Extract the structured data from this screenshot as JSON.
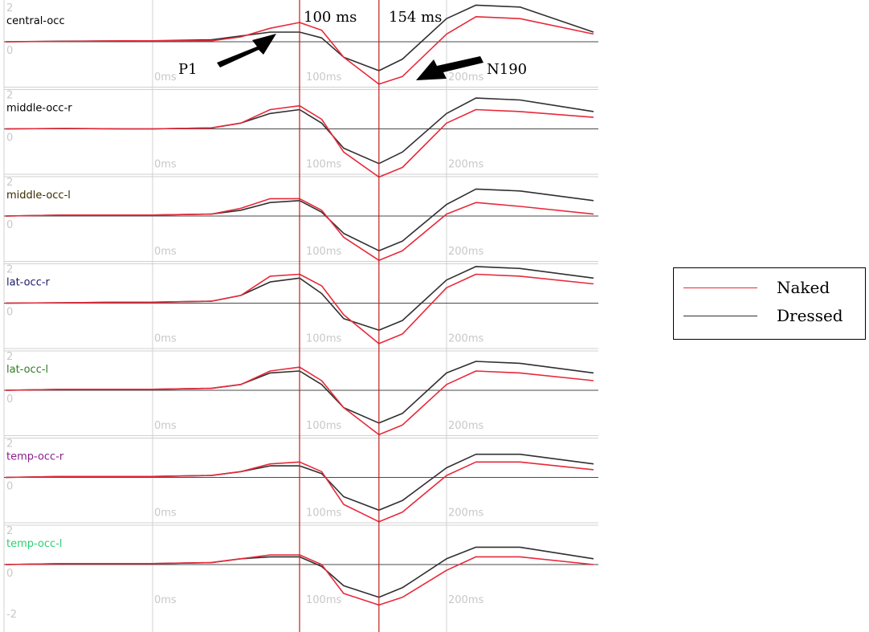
{
  "chart_data": {
    "type": "line",
    "x_unit": "ms",
    "x_ticks": [
      "0ms",
      "100ms",
      "200ms"
    ],
    "markers": [
      {
        "label": "100 ms",
        "t": 100
      },
      {
        "label": "154 ms",
        "t": 154
      }
    ],
    "annotations": [
      {
        "label": "P1",
        "t": 100
      },
      {
        "label": "N190",
        "t": 154
      }
    ],
    "y_top_label": "2",
    "y_zero_label": "0",
    "y_bottom_label": "-2",
    "legend": [
      {
        "name": "Naked",
        "color": "#e8293a"
      },
      {
        "name": "Dressed",
        "color": "#303030"
      }
    ],
    "panels": [
      {
        "label": "central-occ",
        "label_color": "#000000",
        "naked": [
          [
            -100,
            0
          ],
          [
            -60,
            0.02
          ],
          [
            -20,
            0.05
          ],
          [
            0,
            0.05
          ],
          [
            40,
            0.05
          ],
          [
            60,
            0.25
          ],
          [
            80,
            0.7
          ],
          [
            100,
            1.0
          ],
          [
            115,
            0.6
          ],
          [
            130,
            -0.8
          ],
          [
            154,
            -2.2
          ],
          [
            170,
            -1.8
          ],
          [
            200,
            0.4
          ],
          [
            220,
            1.3
          ],
          [
            250,
            1.2
          ],
          [
            300,
            0.4
          ]
        ],
        "dressed": [
          [
            -100,
            0
          ],
          [
            -60,
            0.03
          ],
          [
            -20,
            0.04
          ],
          [
            0,
            0.05
          ],
          [
            40,
            0.1
          ],
          [
            60,
            0.3
          ],
          [
            80,
            0.5
          ],
          [
            100,
            0.5
          ],
          [
            115,
            0.2
          ],
          [
            130,
            -0.8
          ],
          [
            154,
            -1.5
          ],
          [
            170,
            -0.9
          ],
          [
            200,
            1.2
          ],
          [
            220,
            1.9
          ],
          [
            250,
            1.8
          ],
          [
            300,
            0.5
          ]
        ]
      },
      {
        "label": "middle-occ-r",
        "label_color": "#000000",
        "naked": [
          [
            -100,
            0
          ],
          [
            -60,
            0.02
          ],
          [
            -20,
            0.0
          ],
          [
            0,
            0.0
          ],
          [
            40,
            0.05
          ],
          [
            60,
            0.3
          ],
          [
            80,
            1.0
          ],
          [
            100,
            1.2
          ],
          [
            115,
            0.5
          ],
          [
            130,
            -1.2
          ],
          [
            154,
            -2.5
          ],
          [
            170,
            -2.0
          ],
          [
            200,
            0.3
          ],
          [
            220,
            1.0
          ],
          [
            250,
            0.9
          ],
          [
            300,
            0.6
          ]
        ],
        "dressed": [
          [
            -100,
            0
          ],
          [
            -60,
            0.02
          ],
          [
            -20,
            0.0
          ],
          [
            0,
            0.0
          ],
          [
            40,
            0.05
          ],
          [
            60,
            0.3
          ],
          [
            80,
            0.8
          ],
          [
            100,
            1.0
          ],
          [
            115,
            0.3
          ],
          [
            130,
            -1.0
          ],
          [
            154,
            -1.8
          ],
          [
            170,
            -1.2
          ],
          [
            200,
            0.8
          ],
          [
            220,
            1.6
          ],
          [
            250,
            1.5
          ],
          [
            300,
            0.9
          ]
        ]
      },
      {
        "label": "middle-occ-l",
        "label_color": "#3a2a00",
        "naked": [
          [
            -100,
            0
          ],
          [
            -60,
            0.05
          ],
          [
            -20,
            0.05
          ],
          [
            0,
            0.05
          ],
          [
            40,
            0.1
          ],
          [
            60,
            0.4
          ],
          [
            80,
            0.9
          ],
          [
            100,
            0.9
          ],
          [
            115,
            0.3
          ],
          [
            130,
            -1.1
          ],
          [
            154,
            -2.3
          ],
          [
            170,
            -1.8
          ],
          [
            200,
            0.1
          ],
          [
            220,
            0.7
          ],
          [
            250,
            0.5
          ],
          [
            300,
            0.1
          ]
        ],
        "dressed": [
          [
            -100,
            0
          ],
          [
            -60,
            0.05
          ],
          [
            -20,
            0.05
          ],
          [
            0,
            0.05
          ],
          [
            40,
            0.1
          ],
          [
            60,
            0.3
          ],
          [
            80,
            0.7
          ],
          [
            100,
            0.8
          ],
          [
            115,
            0.2
          ],
          [
            130,
            -0.9
          ],
          [
            154,
            -1.8
          ],
          [
            170,
            -1.3
          ],
          [
            200,
            0.6
          ],
          [
            220,
            1.4
          ],
          [
            250,
            1.3
          ],
          [
            300,
            0.8
          ]
        ]
      },
      {
        "label": "lat-occ-r",
        "label_color": "#1a1a6a",
        "naked": [
          [
            -100,
            0
          ],
          [
            -60,
            0.02
          ],
          [
            -20,
            0.05
          ],
          [
            0,
            0.05
          ],
          [
            40,
            0.1
          ],
          [
            60,
            0.4
          ],
          [
            80,
            1.4
          ],
          [
            100,
            1.5
          ],
          [
            115,
            0.9
          ],
          [
            130,
            -0.6
          ],
          [
            154,
            -2.1
          ],
          [
            170,
            -1.6
          ],
          [
            200,
            0.8
          ],
          [
            220,
            1.5
          ],
          [
            250,
            1.4
          ],
          [
            300,
            1.0
          ]
        ],
        "dressed": [
          [
            -100,
            0
          ],
          [
            -60,
            0.02
          ],
          [
            -20,
            0.05
          ],
          [
            0,
            0.05
          ],
          [
            40,
            0.1
          ],
          [
            60,
            0.4
          ],
          [
            80,
            1.1
          ],
          [
            100,
            1.3
          ],
          [
            115,
            0.5
          ],
          [
            130,
            -0.8
          ],
          [
            154,
            -1.4
          ],
          [
            170,
            -0.9
          ],
          [
            200,
            1.2
          ],
          [
            220,
            1.9
          ],
          [
            250,
            1.8
          ],
          [
            300,
            1.3
          ]
        ]
      },
      {
        "label": "lat-occ-l",
        "label_color": "#2e7d20",
        "naked": [
          [
            -100,
            0
          ],
          [
            -60,
            0.05
          ],
          [
            -20,
            0.05
          ],
          [
            0,
            0.05
          ],
          [
            40,
            0.1
          ],
          [
            60,
            0.3
          ],
          [
            80,
            1.0
          ],
          [
            100,
            1.2
          ],
          [
            115,
            0.5
          ],
          [
            130,
            -0.9
          ],
          [
            154,
            -2.3
          ],
          [
            170,
            -1.8
          ],
          [
            200,
            0.3
          ],
          [
            220,
            1.0
          ],
          [
            250,
            0.9
          ],
          [
            300,
            0.5
          ]
        ],
        "dressed": [
          [
            -100,
            0
          ],
          [
            -60,
            0.05
          ],
          [
            -20,
            0.05
          ],
          [
            0,
            0.05
          ],
          [
            40,
            0.1
          ],
          [
            60,
            0.3
          ],
          [
            80,
            0.9
          ],
          [
            100,
            1.0
          ],
          [
            115,
            0.3
          ],
          [
            130,
            -0.9
          ],
          [
            154,
            -1.7
          ],
          [
            170,
            -1.2
          ],
          [
            200,
            0.9
          ],
          [
            220,
            1.5
          ],
          [
            250,
            1.4
          ],
          [
            300,
            0.9
          ]
        ]
      },
      {
        "label": "temp-occ-r",
        "label_color": "#8a1e8a",
        "naked": [
          [
            -100,
            0
          ],
          [
            -60,
            0.05
          ],
          [
            -20,
            0.05
          ],
          [
            0,
            0.05
          ],
          [
            40,
            0.1
          ],
          [
            60,
            0.3
          ],
          [
            80,
            0.7
          ],
          [
            100,
            0.8
          ],
          [
            115,
            0.3
          ],
          [
            130,
            -1.4
          ],
          [
            154,
            -2.3
          ],
          [
            170,
            -1.8
          ],
          [
            200,
            0.1
          ],
          [
            220,
            0.8
          ],
          [
            250,
            0.8
          ],
          [
            300,
            0.4
          ]
        ],
        "dressed": [
          [
            -100,
            0
          ],
          [
            -60,
            0.05
          ],
          [
            -20,
            0.05
          ],
          [
            0,
            0.05
          ],
          [
            40,
            0.1
          ],
          [
            60,
            0.3
          ],
          [
            80,
            0.6
          ],
          [
            100,
            0.6
          ],
          [
            115,
            0.2
          ],
          [
            130,
            -1.0
          ],
          [
            154,
            -1.7
          ],
          [
            170,
            -1.2
          ],
          [
            200,
            0.5
          ],
          [
            220,
            1.2
          ],
          [
            250,
            1.2
          ],
          [
            300,
            0.7
          ]
        ]
      },
      {
        "label": "temp-occ-l",
        "label_color": "#2ecf73",
        "naked": [
          [
            -100,
            0
          ],
          [
            -60,
            0.05
          ],
          [
            -20,
            0.05
          ],
          [
            0,
            0.05
          ],
          [
            40,
            0.1
          ],
          [
            60,
            0.3
          ],
          [
            80,
            0.5
          ],
          [
            100,
            0.5
          ],
          [
            115,
            0.0
          ],
          [
            130,
            -1.5
          ],
          [
            154,
            -2.1
          ],
          [
            170,
            -1.7
          ],
          [
            200,
            -0.3
          ],
          [
            220,
            0.4
          ],
          [
            250,
            0.4
          ],
          [
            300,
            0.0
          ]
        ],
        "dressed": [
          [
            -100,
            0
          ],
          [
            -60,
            0.05
          ],
          [
            -20,
            0.05
          ],
          [
            0,
            0.05
          ],
          [
            40,
            0.1
          ],
          [
            60,
            0.3
          ],
          [
            80,
            0.4
          ],
          [
            100,
            0.4
          ],
          [
            115,
            -0.1
          ],
          [
            130,
            -1.1
          ],
          [
            154,
            -1.7
          ],
          [
            170,
            -1.2
          ],
          [
            200,
            0.3
          ],
          [
            220,
            0.9
          ],
          [
            250,
            0.9
          ],
          [
            300,
            0.3
          ]
        ]
      }
    ]
  }
}
